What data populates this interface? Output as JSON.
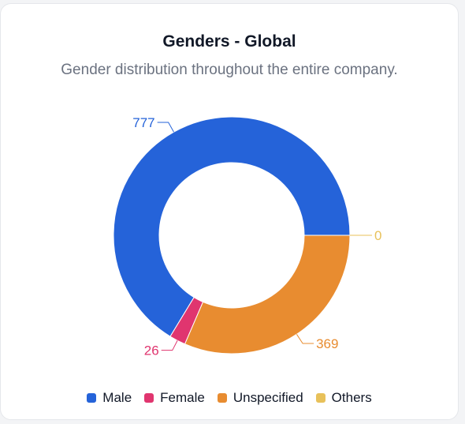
{
  "card": {
    "title": "Genders - Global",
    "subtitle": "Gender distribution throughout the entire company."
  },
  "chart_data": {
    "type": "pie",
    "donut": true,
    "categories": [
      "Male",
      "Female",
      "Unspecified",
      "Others"
    ],
    "values": [
      777,
      26,
      369,
      0
    ],
    "colors": [
      "#2563d9",
      "#e0356f",
      "#e88c30",
      "#e8c15a"
    ],
    "legend_position": "bottom",
    "title": "Genders - Global",
    "subtitle": "Gender distribution throughout the entire company."
  }
}
